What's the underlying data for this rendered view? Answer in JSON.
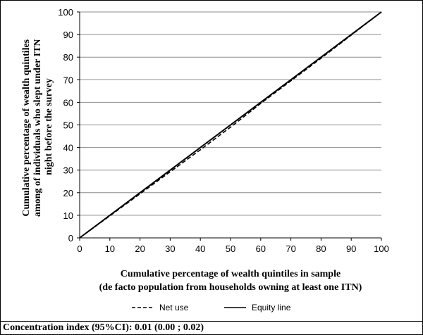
{
  "chart_data": {
    "type": "line",
    "xlabel_lines": [
      "Cumulative percentage of wealth quintiles in sample",
      "(de facto population from households owning at least one ITN)"
    ],
    "ylabel_lines": [
      "Cumulative percentage of wealth quintiles",
      "among of individuals who slept under ITN",
      "night before the survey"
    ],
    "xlim": [
      0,
      100
    ],
    "ylim": [
      0,
      100
    ],
    "xticks": [
      0,
      10,
      20,
      30,
      40,
      50,
      60,
      70,
      80,
      90,
      100
    ],
    "yticks": [
      0,
      10,
      20,
      30,
      40,
      50,
      60,
      70,
      80,
      90,
      100
    ],
    "grid": "horizontal",
    "legend_position": "bottom",
    "series": [
      {
        "name": "Net use",
        "style": "dashed",
        "color": "#000000",
        "x": [
          0,
          20,
          40,
          50,
          60,
          80,
          100
        ],
        "y": [
          0,
          19.5,
          39,
          49,
          59.5,
          79.5,
          100
        ]
      },
      {
        "name": "Equity line",
        "style": "solid",
        "color": "#000000",
        "x": [
          0,
          100
        ],
        "y": [
          0,
          100
        ]
      }
    ]
  },
  "footer": {
    "text": "Concentration index (95%CI): 0.01 (0.00 ; 0.02)"
  }
}
